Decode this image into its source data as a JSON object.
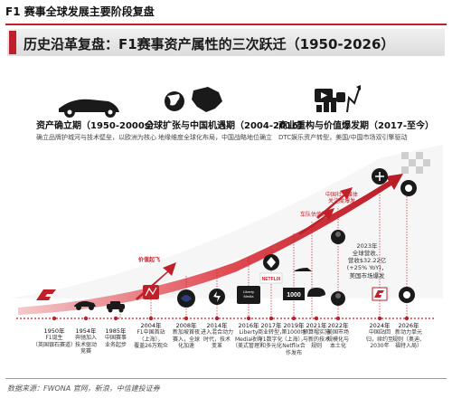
{
  "header": {
    "title": "F1 赛事全球发展主要阶段复盘"
  },
  "banner": {
    "title": "历史沿革复盘：F1赛事资产属性的三次跃迁（1950-2026）"
  },
  "phases": [
    {
      "title": "资产确立期（1950-2000s）",
      "desc": "确立品牌护城河与技术壁垒，以欧洲为核心"
    },
    {
      "title": "全球扩张与中国机遇期（2004-2016）",
      "desc": "地缘维度全球化布局，中国战略地位确立"
    },
    {
      "title": "商业重构与价值爆发期（2017-至今）",
      "desc": "DTC娱乐资产转型，美国/中国市场双引擎驱动"
    }
  ],
  "arrow_label": "价值起飞",
  "timeline": [
    {
      "year": "1950年",
      "text": "F1诞生\n（英国银石赛道）"
    },
    {
      "year": "1954年",
      "text": "奔驰加入\n技术驱动\n竞赛"
    },
    {
      "year": "1985年",
      "text": "中国赛事\n业务起步"
    },
    {
      "year": "2004年",
      "text": "F1中国首站\n（上海），\n覆盖26万观众"
    },
    {
      "year": "2008年",
      "text": "新加坡首夜\n赛入，全球\n化加速"
    },
    {
      "year": "2014年",
      "text": "进入混合动力\n时代，技术\n变革"
    },
    {
      "year": "2016年",
      "text": "Liberty\nMedia收购\n（美式管理）"
    },
    {
      "year": "2017年",
      "text": "商业转型，\nF1数字化\n和多元化"
    },
    {
      "year": "2019年",
      "text": "第1000场\n（上海），\nNetflix合\n作发布"
    },
    {
      "year": "2021年",
      "text": "预算帽实施\n与新的技术\n规则"
    },
    {
      "year": "2022年",
      "text": "美国市场\n规模化与\n本土化"
    },
    {
      "year": "2024年",
      "text": "中国站回\n归，续约至\n2030年"
    },
    {
      "year": "2026年",
      "text": "新动力单元\n规则（奥迪、\n福特入局）"
    }
  ],
  "callouts": [
    {
      "text": "车队估值飙升"
    },
    {
      "text": "中国社交媒体\n关注度爆发"
    }
  ],
  "stat": {
    "text": "2023年\n全球营收、\n营收$32.22亿\n(+25% YoY)，\n美国市场爆发"
  },
  "logos": {
    "netflix": "NETFLIX",
    "liberty": "Liberty\nMedia",
    "thousand": "1000"
  },
  "source": "数据来源：FWONA 官网，新浪，中信建投证券",
  "colors": {
    "accent": "#c0202a",
    "dark": "#1a1a1a"
  }
}
